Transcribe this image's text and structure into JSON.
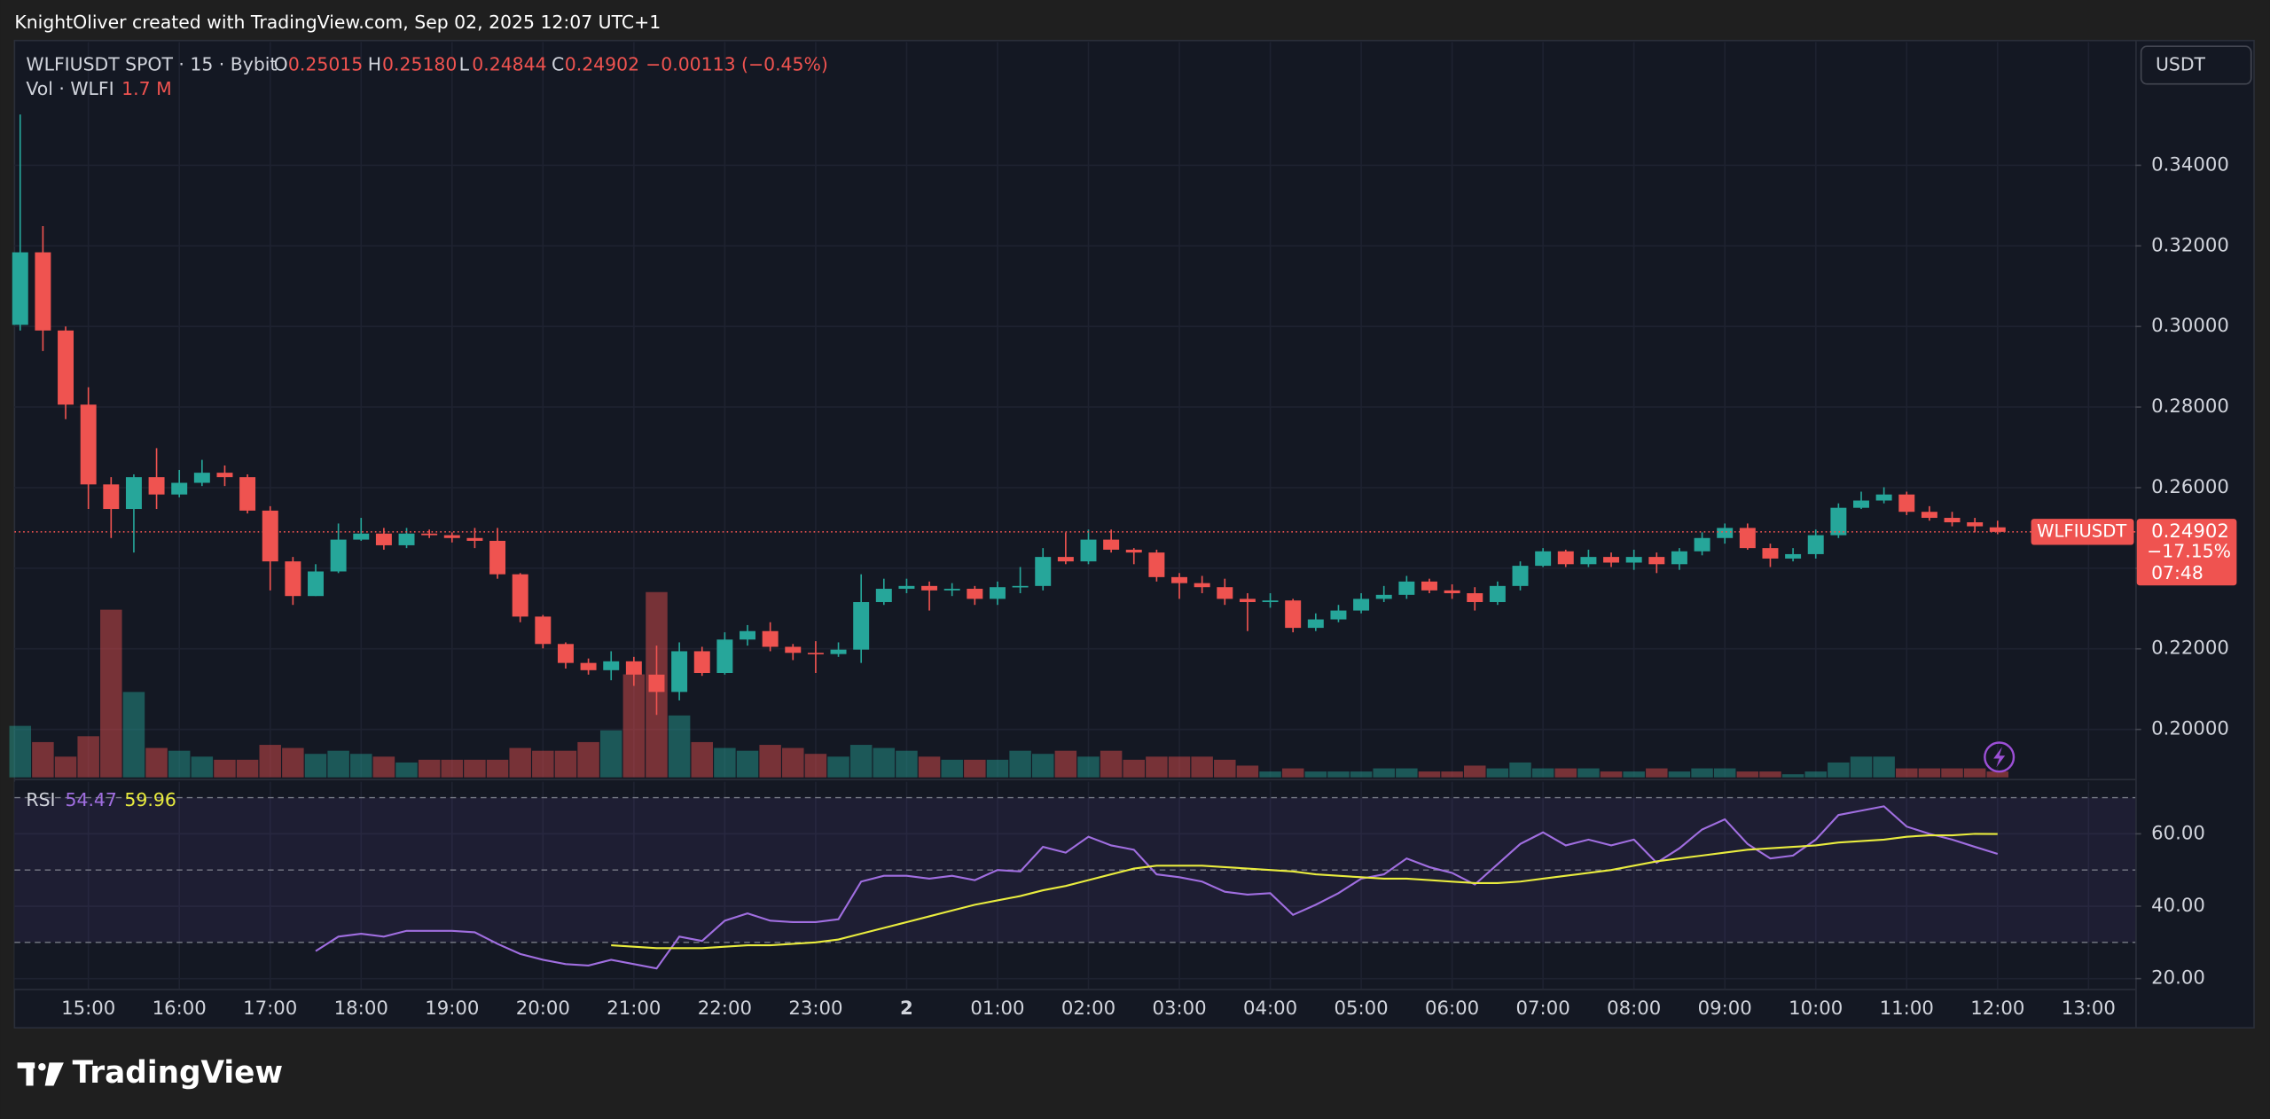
{
  "header": {
    "text": "KnightOliver created with TradingView.com, Sep 02, 2025 12:07 UTC+1"
  },
  "footer": {
    "brand": "TradingView"
  },
  "chart_data": [
    {
      "type": "candlestick",
      "legend": {
        "symbol": "WLFIUSDT SPOT · 15 · Bybit",
        "open_label": "O",
        "open": "0.25015",
        "high_label": "H",
        "high": "0.25180",
        "low_label": "L",
        "low": "0.24844",
        "close_label": "C",
        "close": "0.24902",
        "change": "−0.00113 (−0.45%)",
        "volume_title": "Vol · WLFI",
        "volume": "1.7 M"
      },
      "currency": "USDT",
      "price_marker": {
        "symbol": "WLFIUSDT",
        "change": "−17.15%",
        "countdown": "07:48"
      },
      "up_color": "#26a69a",
      "down_color": "#ef5350",
      "grid": true,
      "xlim": [
        -0.25,
        93.06
      ],
      "ylim": [
        0.1881,
        0.3706
      ],
      "yticks": [
        {
          "value": 0.2,
          "label": "0.20000"
        },
        {
          "value": 0.22,
          "label": "0.22000"
        },
        {
          "value": 0.24,
          "label": "0.24000"
        },
        {
          "value": 0.26,
          "label": "0.26000"
        },
        {
          "value": 0.28,
          "label": "0.28000"
        },
        {
          "value": 0.3,
          "label": "0.30000"
        },
        {
          "value": 0.32,
          "label": "0.32000"
        },
        {
          "value": 0.34,
          "label": "0.34000"
        }
      ],
      "open": [
        0.3004,
        0.3184,
        0.299,
        0.2806,
        0.2608,
        0.2547,
        0.2626,
        0.2583,
        0.2612,
        0.2637,
        0.2626,
        0.2543,
        0.2417,
        0.2331,
        0.2392,
        0.2471,
        0.2486,
        0.2457,
        0.2486,
        0.2482,
        0.2475,
        0.2468,
        0.2385,
        0.228,
        0.2212,
        0.2165,
        0.2147,
        0.2169,
        0.2136,
        0.2093,
        0.2194,
        0.214,
        0.2223,
        0.2244,
        0.2205,
        0.219,
        0.2187,
        0.2198,
        0.2316,
        0.2349,
        0.2356,
        0.2345,
        0.2349,
        0.2324,
        0.2353,
        0.2356,
        0.2428,
        0.2417,
        0.2471,
        0.2446,
        0.2439,
        0.2378,
        0.2363,
        0.2353,
        0.2324,
        0.2316,
        0.232,
        0.2252,
        0.2273,
        0.2295,
        0.2324,
        0.2334,
        0.2367,
        0.2345,
        0.2338,
        0.2316,
        0.2356,
        0.2406,
        0.2442,
        0.241,
        0.2428,
        0.2414,
        0.2428,
        0.241,
        0.2442,
        0.2475,
        0.25,
        0.245,
        0.2424,
        0.2435,
        0.2482,
        0.255,
        0.2568,
        0.2583,
        0.254,
        0.2525,
        0.2514,
        0.25015
      ],
      "high": [
        0.3526,
        0.3249,
        0.3,
        0.2849,
        0.2626,
        0.2633,
        0.2698,
        0.2644,
        0.2669,
        0.2655,
        0.2633,
        0.2554,
        0.2428,
        0.241,
        0.2511,
        0.2525,
        0.25,
        0.25,
        0.2496,
        0.2489,
        0.25,
        0.25,
        0.2388,
        0.2284,
        0.2216,
        0.2176,
        0.2194,
        0.218,
        0.2208,
        0.2216,
        0.2205,
        0.2241,
        0.2259,
        0.2266,
        0.2212,
        0.2219,
        0.2216,
        0.2385,
        0.2374,
        0.2374,
        0.2367,
        0.2363,
        0.2356,
        0.2367,
        0.2403,
        0.245,
        0.2489,
        0.2496,
        0.2496,
        0.245,
        0.2446,
        0.2388,
        0.2381,
        0.2374,
        0.2338,
        0.2338,
        0.2324,
        0.2288,
        0.2309,
        0.2338,
        0.2356,
        0.2381,
        0.2374,
        0.236,
        0.2353,
        0.2367,
        0.2417,
        0.245,
        0.2446,
        0.2446,
        0.2439,
        0.2446,
        0.2439,
        0.245,
        0.2489,
        0.2511,
        0.2511,
        0.2461,
        0.245,
        0.2496,
        0.2561,
        0.259,
        0.2601,
        0.259,
        0.2554,
        0.254,
        0.2525,
        0.2518
      ],
      "low": [
        0.299,
        0.2939,
        0.277,
        0.2547,
        0.2475,
        0.2439,
        0.2547,
        0.2576,
        0.2604,
        0.2604,
        0.2536,
        0.2345,
        0.2309,
        0.2331,
        0.2388,
        0.2468,
        0.2446,
        0.245,
        0.2475,
        0.2464,
        0.245,
        0.2374,
        0.2266,
        0.2201,
        0.2151,
        0.2136,
        0.2122,
        0.2108,
        0.2036,
        0.2072,
        0.2133,
        0.2136,
        0.2208,
        0.2194,
        0.2172,
        0.214,
        0.218,
        0.2165,
        0.2309,
        0.2338,
        0.2295,
        0.2331,
        0.2309,
        0.2309,
        0.2338,
        0.2345,
        0.241,
        0.241,
        0.2439,
        0.241,
        0.2367,
        0.2324,
        0.2338,
        0.2309,
        0.2244,
        0.2302,
        0.2241,
        0.2244,
        0.2266,
        0.2288,
        0.2316,
        0.2324,
        0.2338,
        0.2324,
        0.2295,
        0.2309,
        0.2345,
        0.2403,
        0.2403,
        0.2403,
        0.2403,
        0.2396,
        0.2388,
        0.2396,
        0.2432,
        0.2461,
        0.2446,
        0.2403,
        0.2417,
        0.2424,
        0.2475,
        0.2547,
        0.2561,
        0.2532,
        0.2518,
        0.2504,
        0.2489,
        0.24844
      ],
      "close": [
        0.3184,
        0.299,
        0.2806,
        0.2608,
        0.2547,
        0.2626,
        0.2583,
        0.2612,
        0.2637,
        0.2626,
        0.2543,
        0.2417,
        0.2331,
        0.2392,
        0.2471,
        0.2486,
        0.2457,
        0.2486,
        0.2482,
        0.2475,
        0.2468,
        0.2385,
        0.228,
        0.2212,
        0.2165,
        0.2147,
        0.2169,
        0.2136,
        0.2093,
        0.2194,
        0.214,
        0.2223,
        0.2244,
        0.2205,
        0.219,
        0.2187,
        0.2198,
        0.2316,
        0.2349,
        0.2356,
        0.2345,
        0.2349,
        0.2324,
        0.2353,
        0.2356,
        0.2428,
        0.2417,
        0.2471,
        0.2446,
        0.2439,
        0.2378,
        0.2363,
        0.2353,
        0.2324,
        0.2316,
        0.232,
        0.2252,
        0.2273,
        0.2295,
        0.2324,
        0.2334,
        0.2367,
        0.2345,
        0.2338,
        0.2316,
        0.2356,
        0.2406,
        0.2442,
        0.241,
        0.2428,
        0.2414,
        0.2428,
        0.241,
        0.2442,
        0.2475,
        0.25,
        0.245,
        0.2424,
        0.2435,
        0.2482,
        0.255,
        0.2568,
        0.2583,
        0.254,
        0.2525,
        0.2514,
        0.2504,
        0.24902
      ],
      "volume": [
        14.9,
        10.2,
        6,
        11.9,
        48.5,
        24.7,
        8.5,
        7.7,
        6,
        5.1,
        5.1,
        9.4,
        8.5,
        6.8,
        7.7,
        6.8,
        6,
        4.3,
        5.1,
        5.1,
        5.1,
        5.1,
        8.5,
        7.7,
        7.7,
        10.2,
        13.6,
        29.8,
        53.6,
        17.9,
        10.2,
        8.5,
        7.7,
        9.4,
        8.5,
        6.8,
        6,
        9.4,
        8.5,
        7.7,
        6,
        5.1,
        5.1,
        5.1,
        7.7,
        6.8,
        7.7,
        6,
        7.7,
        5.1,
        6,
        6,
        6,
        5.1,
        3.4,
        1.7,
        2.6,
        1.7,
        1.7,
        1.7,
        2.6,
        2.6,
        1.7,
        1.7,
        3.4,
        2.6,
        4.3,
        2.6,
        2.6,
        2.6,
        1.7,
        1.7,
        2.6,
        1.7,
        2.6,
        2.6,
        1.7,
        1.7,
        0.9,
        1.7,
        4.3,
        6,
        6,
        2.6,
        2.6,
        2.6,
        2.6,
        1.7
      ]
    },
    {
      "type": "line",
      "title": "RSI",
      "grid": true,
      "xlim": [
        -0.25,
        93.06
      ],
      "xticks": [
        {
          "value": 3,
          "label": "15:00"
        },
        {
          "value": 7,
          "label": "16:00"
        },
        {
          "value": 11,
          "label": "17:00"
        },
        {
          "value": 15,
          "label": "18:00"
        },
        {
          "value": 19,
          "label": "19:00"
        },
        {
          "value": 23,
          "label": "20:00"
        },
        {
          "value": 27,
          "label": "21:00"
        },
        {
          "value": 31,
          "label": "22:00"
        },
        {
          "value": 35,
          "label": "23:00"
        },
        {
          "value": 39,
          "label": "2"
        },
        {
          "value": 43,
          "label": "01:00"
        },
        {
          "value": 47,
          "label": "02:00"
        },
        {
          "value": 51,
          "label": "03:00"
        },
        {
          "value": 55,
          "label": "04:00"
        },
        {
          "value": 59,
          "label": "05:00"
        },
        {
          "value": 63,
          "label": "06:00"
        },
        {
          "value": 67,
          "label": "07:00"
        },
        {
          "value": 71,
          "label": "08:00"
        },
        {
          "value": 75,
          "label": "09:00"
        },
        {
          "value": 79,
          "label": "10:00"
        },
        {
          "value": 83,
          "label": "11:00"
        },
        {
          "value": 87,
          "label": "12:00"
        },
        {
          "value": 91,
          "label": "13:00"
        }
      ],
      "ylim": [
        17.2,
        74.4
      ],
      "yticks": [
        {
          "value": 20,
          "label": "20.00"
        },
        {
          "value": 40,
          "label": "40.00"
        },
        {
          "value": 60,
          "label": "60.00"
        }
      ],
      "levels": [
        70,
        50,
        30
      ],
      "band_color": "#7e57c2",
      "series": [
        {
          "color": "#a06ee0",
          "values": [
            null,
            null,
            null,
            null,
            null,
            null,
            null,
            null,
            null,
            null,
            null,
            null,
            null,
            27.6,
            31.6,
            32.4,
            31.6,
            33.2,
            33.2,
            33.2,
            32.8,
            29.6,
            26.8,
            25.2,
            24,
            23.6,
            25.2,
            24,
            22.8,
            31.6,
            30.4,
            36,
            38,
            36,
            35.6,
            35.6,
            36.4,
            46.8,
            48.4,
            48.4,
            47.6,
            48.4,
            47.2,
            50,
            49.6,
            56.4,
            54.8,
            59.2,
            56.8,
            55.6,
            48.8,
            48,
            46.8,
            44,
            43.2,
            43.6,
            37.6,
            40.4,
            43.6,
            47.6,
            48.8,
            53.2,
            50.8,
            49.2,
            46,
            51.6,
            57.2,
            60.4,
            56.8,
            58.4,
            56.8,
            58.4,
            52,
            56,
            61.2,
            64,
            57.2,
            53.2,
            54,
            58.4,
            65.2,
            66.4,
            67.6,
            62,
            60,
            58.4,
            56.4,
            54.47
          ]
        },
        {
          "color": "#e9ec3e",
          "values": [
            null,
            null,
            null,
            null,
            null,
            null,
            null,
            null,
            null,
            null,
            null,
            null,
            null,
            null,
            null,
            null,
            null,
            null,
            null,
            null,
            null,
            null,
            null,
            null,
            null,
            null,
            29.2,
            28.8,
            28.4,
            28.4,
            28.4,
            28.8,
            29.2,
            29.2,
            29.6,
            30,
            30.8,
            32.4,
            34,
            35.6,
            37.2,
            38.8,
            40.4,
            41.6,
            42.8,
            44.4,
            45.6,
            47.2,
            48.8,
            50.4,
            51.2,
            51.2,
            51.2,
            50.8,
            50.4,
            50,
            49.6,
            48.8,
            48.4,
            48,
            47.6,
            47.6,
            47.2,
            46.8,
            46.4,
            46.4,
            46.8,
            47.6,
            48.4,
            49.2,
            50,
            51.2,
            52.4,
            53.2,
            54,
            54.8,
            55.6,
            56,
            56.4,
            56.8,
            57.6,
            58,
            58.4,
            59.2,
            59.6,
            59.6,
            60,
            59.96
          ]
        }
      ]
    }
  ]
}
